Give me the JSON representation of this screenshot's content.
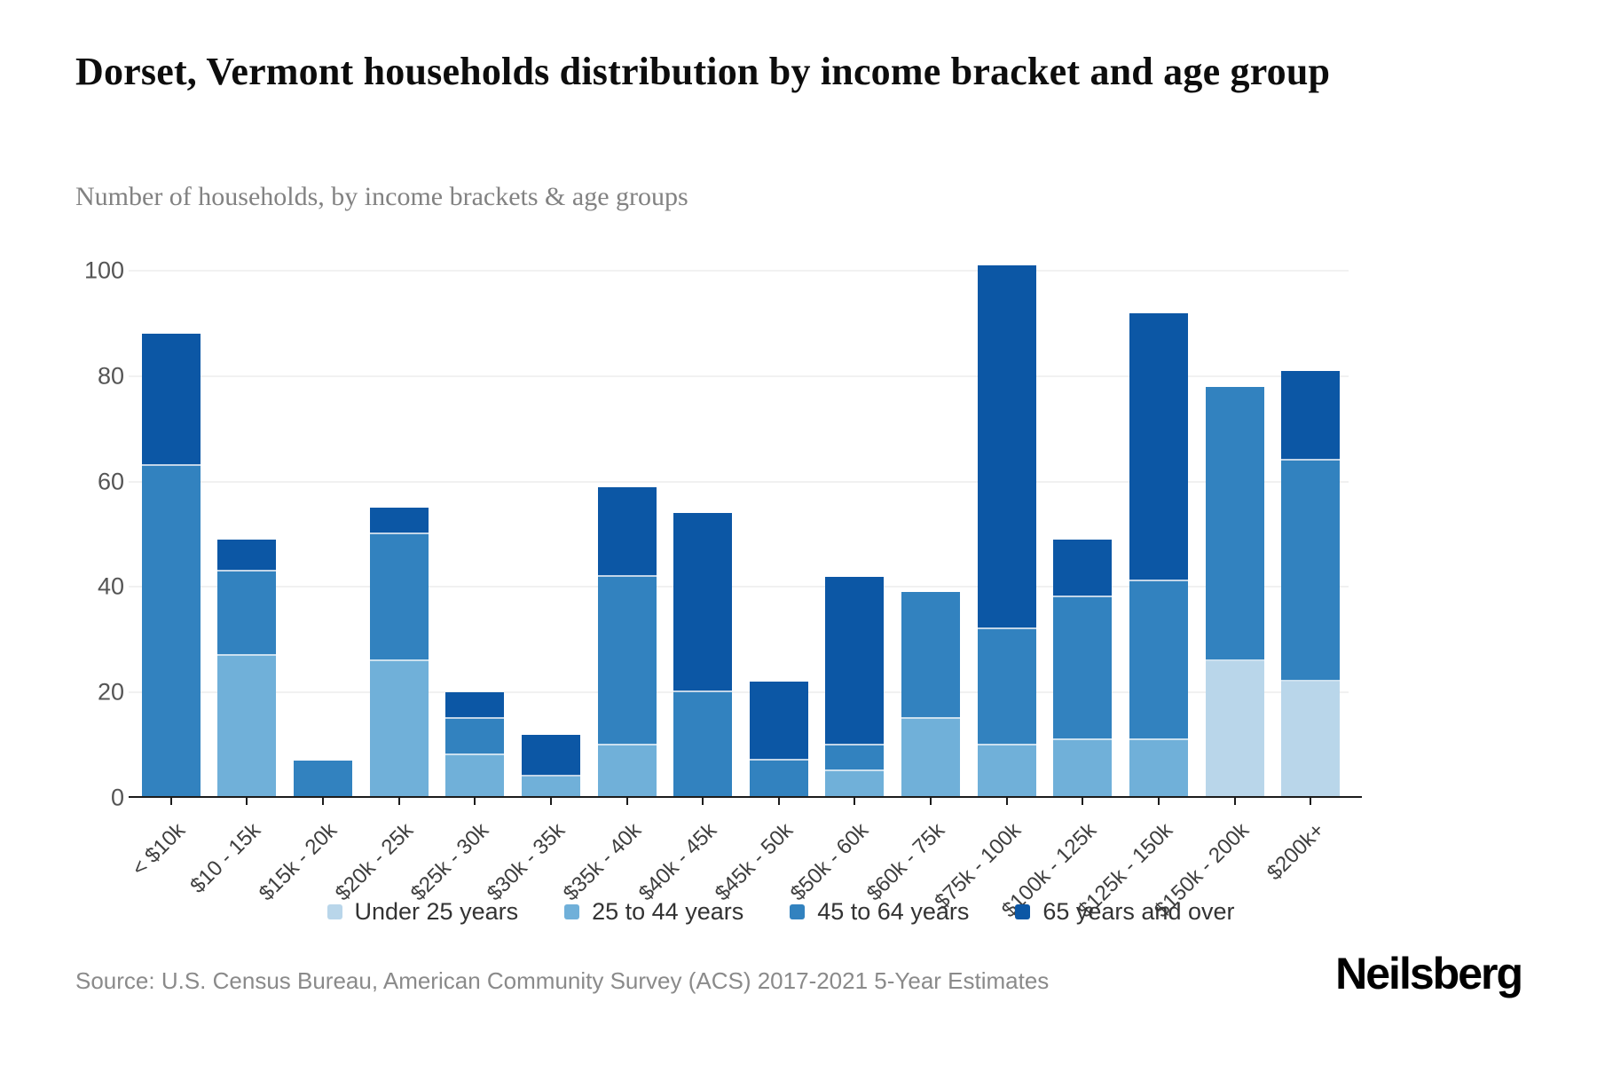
{
  "header": {
    "title": "Dorset, Vermont households distribution by income bracket and age group",
    "subtitle": "Number of households, by income brackets & age groups"
  },
  "chart_data": {
    "type": "bar",
    "stacked": true,
    "title": "Dorset, Vermont households distribution by income bracket and age group",
    "xlabel": "",
    "ylabel": "Number of households",
    "ylim": [
      0,
      100
    ],
    "yticks": [
      0,
      20,
      40,
      60,
      80,
      100
    ],
    "grid": true,
    "legend_position": "bottom",
    "categories": [
      "< $10k",
      "$10 - 15k",
      "$15k - 20k",
      "$20k - 25k",
      "$25k - 30k",
      "$30k - 35k",
      "$35k - 40k",
      "$40k - 45k",
      "$45k - 50k",
      "$50k - 60k",
      "$60k - 75k",
      "$75k - 100k",
      "$100k - 125k",
      "$125k - 150k",
      "$150k - 200k",
      "$200k+"
    ],
    "series": [
      {
        "name": "Under 25 years",
        "color": "#b9d6ea",
        "values": [
          0,
          0,
          0,
          0,
          0,
          0,
          0,
          0,
          0,
          0,
          0,
          0,
          0,
          0,
          26,
          22
        ]
      },
      {
        "name": "25 to 44 years",
        "color": "#70b0d9",
        "values": [
          0,
          27,
          0,
          26,
          8,
          4,
          10,
          0,
          0,
          5,
          15,
          10,
          11,
          11,
          0,
          0
        ]
      },
      {
        "name": "45 to 64 years",
        "color": "#3282bf",
        "values": [
          63,
          16,
          7,
          24,
          7,
          0,
          32,
          20,
          7,
          5,
          24,
          22,
          27,
          30,
          52,
          42
        ]
      },
      {
        "name": "65 years and over",
        "color": "#0c57a5",
        "values": [
          25,
          6,
          0,
          5,
          5,
          8,
          17,
          34,
          15,
          32,
          0,
          69,
          11,
          51,
          0,
          17
        ]
      }
    ]
  },
  "footer": {
    "source": "Source: U.S. Census Bureau, American Community Survey (ACS) 2017-2021 5-Year Estimates",
    "brand": "Neilsberg"
  }
}
